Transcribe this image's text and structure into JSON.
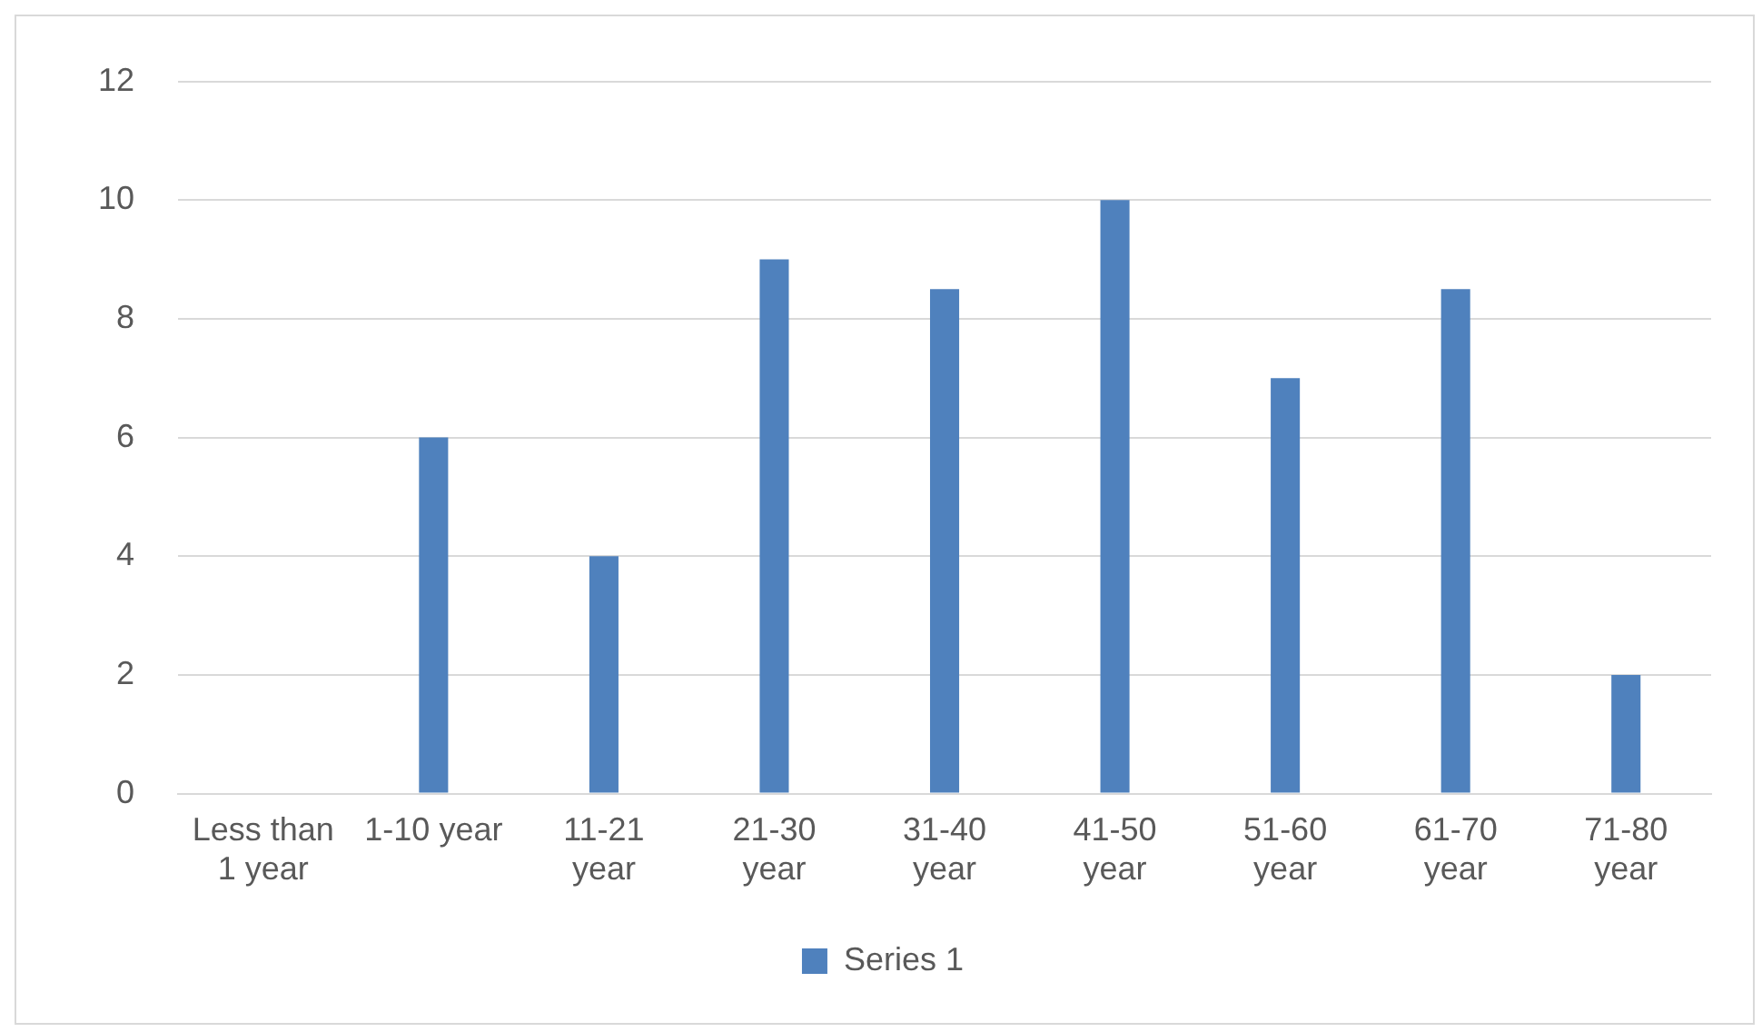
{
  "chart_data": {
    "type": "bar",
    "categories": [
      "Less than 1 year",
      "1-10 year",
      "11-21 year",
      "21-30 year",
      "31-40 year",
      "41-50 year",
      "51-60 year",
      "61-70 year",
      "71-80 year"
    ],
    "series": [
      {
        "name": "Series 1",
        "color": "#4f81bd",
        "values": [
          0,
          6,
          4,
          9,
          8.5,
          10,
          7,
          8.5,
          2
        ]
      }
    ],
    "ylim": [
      0,
      12
    ],
    "yticks": [
      0,
      2,
      4,
      6,
      8,
      10,
      12
    ],
    "grid": "y",
    "legend": "bottom"
  }
}
